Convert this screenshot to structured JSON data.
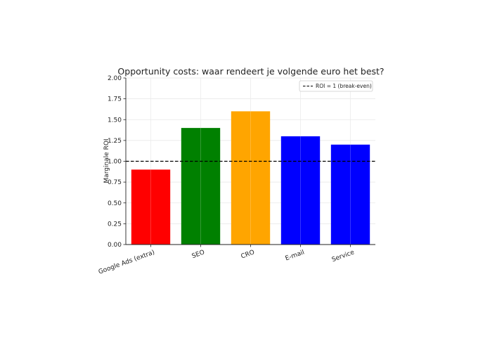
{
  "chart_data": {
    "type": "bar",
    "title": "Opportunity costs: waar rendeert je volgende euro het best?",
    "xlabel": "",
    "ylabel": "Marginale ROI",
    "categories": [
      "Google Ads (extra)",
      "SEO",
      "CRO",
      "E-mail",
      "Service"
    ],
    "values": [
      0.9,
      1.4,
      1.6,
      1.3,
      1.2
    ],
    "colors": [
      "#ff0000",
      "#008000",
      "#ffa500",
      "#0000ff",
      "#0000ff"
    ],
    "ylim": [
      0,
      2.0
    ],
    "yticks": [
      "0.00",
      "0.25",
      "0.50",
      "0.75",
      "1.00",
      "1.25",
      "1.50",
      "1.75",
      "2.00"
    ],
    "grid": true,
    "reference_line": {
      "value": 1.0,
      "label": "ROI = 1 (break-even)",
      "style": "dashed",
      "color": "#000000"
    },
    "legend_position": "top-right"
  }
}
